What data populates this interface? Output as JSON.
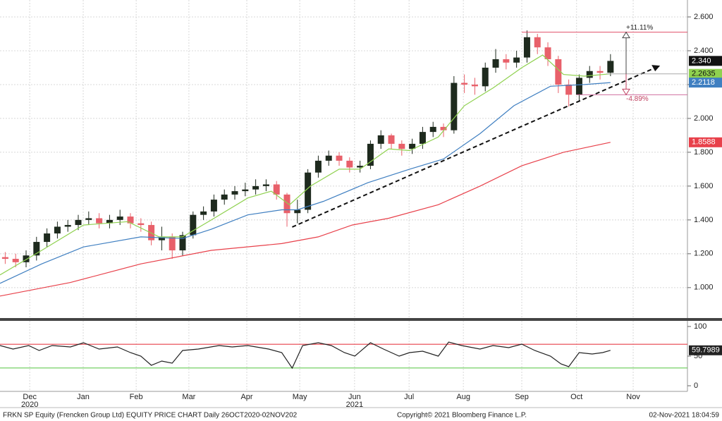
{
  "chart_data": [
    {
      "type": "candlestick",
      "ylim": [
        0.82,
        2.7
      ],
      "xlim": [
        0,
        263.5
      ],
      "yticks": [
        {
          "value": 1,
          "label": "1.000"
        },
        {
          "value": 1.2,
          "label": "1.200"
        },
        {
          "value": 1.4,
          "label": "1.400"
        },
        {
          "value": 1.6,
          "label": "1.600"
        },
        {
          "value": 1.8,
          "label": "1.800"
        },
        {
          "value": 2,
          "label": "2.000"
        },
        {
          "value": 2.2,
          "label": "2.200"
        },
        {
          "value": 2.4,
          "label": "2.400"
        },
        {
          "value": 2.6,
          "label": "2.600"
        }
      ],
      "grid": true,
      "up_color": "#1e2a1e",
      "down_color": "#e8606a",
      "x": [
        2,
        6,
        10,
        14,
        18,
        22,
        26,
        30,
        34,
        38,
        42,
        46,
        50,
        54,
        58,
        62,
        66,
        70,
        74,
        78,
        82,
        86,
        90,
        94,
        98,
        102,
        106,
        110,
        114,
        118,
        122,
        126,
        130,
        134,
        138,
        142,
        146,
        150,
        154,
        158,
        162,
        166,
        170,
        174,
        178,
        182,
        186,
        190,
        194,
        198,
        202,
        206,
        210,
        214,
        218,
        222,
        226,
        230,
        234
      ],
      "open": [
        1.18,
        1.17,
        1.15,
        1.19,
        1.27,
        1.32,
        1.36,
        1.37,
        1.4,
        1.41,
        1.38,
        1.4,
        1.42,
        1.38,
        1.37,
        1.28,
        1.3,
        1.22,
        1.31,
        1.43,
        1.45,
        1.52,
        1.55,
        1.57,
        1.58,
        1.6,
        1.61,
        1.55,
        1.44,
        1.46,
        1.68,
        1.75,
        1.78,
        1.75,
        1.71,
        1.72,
        1.85,
        1.9,
        1.85,
        1.82,
        1.85,
        1.92,
        1.95,
        1.93,
        2.21,
        2.2,
        2.19,
        2.3,
        2.35,
        2.33,
        2.36,
        2.48,
        2.42,
        2.35,
        2.2,
        2.14,
        2.24,
        2.28,
        2.27
      ],
      "high": [
        1.21,
        1.2,
        1.22,
        1.3,
        1.35,
        1.39,
        1.4,
        1.43,
        1.45,
        1.44,
        1.43,
        1.46,
        1.44,
        1.41,
        1.39,
        1.36,
        1.32,
        1.33,
        1.45,
        1.48,
        1.55,
        1.58,
        1.6,
        1.62,
        1.64,
        1.64,
        1.63,
        1.56,
        1.52,
        1.7,
        1.78,
        1.81,
        1.8,
        1.77,
        1.75,
        1.87,
        1.93,
        1.91,
        1.87,
        1.88,
        1.95,
        1.98,
        1.97,
        2.25,
        2.26,
        2.24,
        2.33,
        2.41,
        2.38,
        2.4,
        2.52,
        2.5,
        2.45,
        2.37,
        2.23,
        2.26,
        2.31,
        2.31,
        2.38
      ],
      "low": [
        1.14,
        1.12,
        1.12,
        1.16,
        1.24,
        1.29,
        1.33,
        1.34,
        1.37,
        1.35,
        1.35,
        1.37,
        1.35,
        1.33,
        1.25,
        1.22,
        1.17,
        1.19,
        1.29,
        1.4,
        1.42,
        1.49,
        1.52,
        1.54,
        1.55,
        1.57,
        1.52,
        1.36,
        1.38,
        1.44,
        1.65,
        1.72,
        1.72,
        1.68,
        1.68,
        1.7,
        1.82,
        1.82,
        1.78,
        1.79,
        1.82,
        1.89,
        1.89,
        1.91,
        2.15,
        2.14,
        2.16,
        2.27,
        2.29,
        2.3,
        2.33,
        2.38,
        2.31,
        2.15,
        2.07,
        2.1,
        2.21,
        2.23,
        2.25
      ],
      "close": [
        1.17,
        1.15,
        1.19,
        1.27,
        1.32,
        1.36,
        1.37,
        1.4,
        1.41,
        1.38,
        1.4,
        1.42,
        1.38,
        1.37,
        1.28,
        1.3,
        1.22,
        1.31,
        1.43,
        1.45,
        1.52,
        1.55,
        1.57,
        1.58,
        1.6,
        1.61,
        1.55,
        1.44,
        1.46,
        1.68,
        1.75,
        1.78,
        1.75,
        1.71,
        1.72,
        1.85,
        1.9,
        1.85,
        1.82,
        1.85,
        1.92,
        1.95,
        1.93,
        2.21,
        2.2,
        2.19,
        2.3,
        2.35,
        2.33,
        2.36,
        2.48,
        2.42,
        2.35,
        2.2,
        2.14,
        2.24,
        2.28,
        2.27,
        2.34
      ],
      "last": {
        "value": 2.34,
        "label": "2.340"
      },
      "series": [
        {
          "color": "#8fd14f",
          "x": [
            0,
            16,
            32,
            49,
            61,
            70,
            81,
            95,
            104,
            111,
            119,
            130,
            138,
            149,
            157,
            168,
            178,
            189,
            200,
            208,
            216,
            224,
            234
          ],
          "values": [
            1.075,
            1.22,
            1.37,
            1.39,
            1.3,
            1.3,
            1.4,
            1.53,
            1.57,
            1.49,
            1.6,
            1.7,
            1.7,
            1.82,
            1.81,
            1.89,
            2.075,
            2.18,
            2.3,
            2.375,
            2.26,
            2.25,
            2.2635
          ],
          "last": 2.2635
        },
        {
          "color": "#3f7fc1",
          "x": [
            0,
            16,
            32,
            54,
            70,
            81,
            95,
            108,
            114,
            124,
            141,
            157,
            170,
            184,
            197,
            211,
            224,
            234
          ],
          "values": [
            1.025,
            1.14,
            1.24,
            1.3,
            1.29,
            1.345,
            1.43,
            1.46,
            1.46,
            1.51,
            1.62,
            1.7,
            1.76,
            1.91,
            2.075,
            2.19,
            2.2,
            2.2118
          ],
          "last": 2.2118
        },
        {
          "color": "#e8404a",
          "x": [
            0,
            27,
            54,
            81,
            108,
            122,
            135,
            149,
            168,
            184,
            200,
            216,
            234
          ],
          "values": [
            0.95,
            1.03,
            1.14,
            1.22,
            1.26,
            1.3,
            1.37,
            1.41,
            1.49,
            1.6,
            1.72,
            1.8,
            1.8588
          ],
          "last": 1.8588
        }
      ],
      "trendline": {
        "x": [
          112,
          253
        ],
        "values": [
          1.358,
          2.312
        ]
      },
      "annotations": [
        {
          "label": "+11.11%",
          "value": 2.51,
          "x": 200
        },
        {
          "label": "-4.89%",
          "value": 2.14,
          "x": 221
        }
      ],
      "arrow_base": 2.2635
    },
    {
      "type": "line",
      "ylim": [
        -9.5,
        109.5
      ],
      "xlim": [
        0,
        263.5
      ],
      "yticks": [
        0,
        50,
        100
      ],
      "levels": [
        {
          "value": 70,
          "color": "#e8404a"
        },
        {
          "value": 30,
          "color": "#66cc55"
        }
      ],
      "series": [
        {
          "color": "#222222",
          "x": [
            0,
            5,
            11,
            15,
            20,
            27,
            32,
            38,
            45,
            50,
            54,
            58,
            62,
            66,
            70,
            76,
            84,
            89,
            95,
            103,
            108,
            112,
            116,
            122,
            127,
            132,
            136,
            142,
            147,
            153,
            157,
            162,
            168,
            172,
            177,
            184,
            189,
            195,
            200,
            205,
            211,
            215,
            218,
            222,
            227,
            231,
            234
          ],
          "values": [
            67.9,
            61.9,
            67.9,
            59.5,
            67.9,
            65.5,
            72.6,
            61.9,
            65.5,
            56,
            50,
            34.5,
            41.7,
            38.1,
            59.5,
            61.9,
            67.9,
            65.5,
            67.9,
            61.9,
            56,
            29.8,
            67.9,
            72.6,
            67.9,
            56,
            50,
            72.6,
            61.9,
            50,
            56,
            58.3,
            50,
            73.8,
            67.9,
            61.9,
            67.9,
            64.3,
            70.2,
            59.5,
            50,
            36.9,
            32.1,
            56,
            53.6,
            56,
            59.7989
          ],
          "last": 59.7989
        }
      ],
      "xticks": [
        {
          "value": 11.4,
          "label": "Dec"
        },
        {
          "value": 31.9,
          "label": "Jan"
        },
        {
          "value": 52.2,
          "label": "Feb"
        },
        {
          "value": 72.4,
          "label": "Mar"
        },
        {
          "value": 94.6,
          "label": "Apr"
        },
        {
          "value": 114.9,
          "label": "May"
        },
        {
          "value": 135.9,
          "label": "Jun"
        },
        {
          "value": 156.8,
          "label": "Jul"
        },
        {
          "value": 177.6,
          "label": "Aug"
        },
        {
          "value": 200,
          "label": "Sep"
        },
        {
          "value": 221,
          "label": "Oct"
        },
        {
          "value": 242.7,
          "label": "Nov"
        }
      ],
      "year_labels": [
        {
          "value": 11.4,
          "label": "2020"
        },
        {
          "value": 135.9,
          "label": "2021"
        }
      ]
    }
  ],
  "footer": {
    "left": "FRKN SP Equity (Frencken Group Ltd) EQUITY PRICE CHART  Daily 26OCT2020-02NOV202",
    "center": "Copyright© 2021 Bloomberg Finance L.P.",
    "right": "02-Nov-2021 18:04:59"
  }
}
